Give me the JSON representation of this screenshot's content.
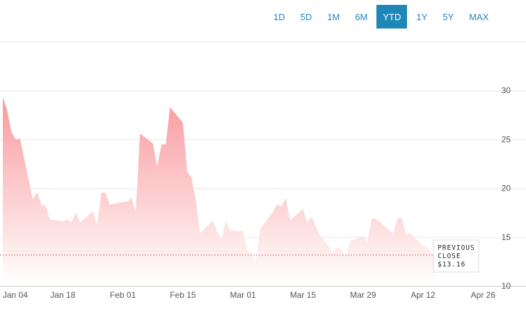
{
  "range_selector": {
    "options": [
      "1D",
      "5D",
      "1M",
      "6M",
      "YTD",
      "1Y",
      "5Y",
      "MAX"
    ],
    "selected": "YTD"
  },
  "colors": {
    "accent": "#1f86b8",
    "area_top": "#f99a9e",
    "area_bottom": "#ffffff",
    "previous_close_line": "#d9777b"
  },
  "chart_data": {
    "type": "area",
    "title": "",
    "xlabel": "",
    "ylabel": "",
    "ylim": [
      10,
      35
    ],
    "xlim": [
      "2021-01-04",
      "2021-04-30"
    ],
    "grid": true,
    "y_ticks": [
      10,
      15,
      20,
      25,
      30
    ],
    "x_tick_labels": [
      {
        "date": "2021-01-04",
        "label": "Jan 04"
      },
      {
        "date": "2021-01-18",
        "label": "Jan 18"
      },
      {
        "date": "2021-02-01",
        "label": "Feb 01"
      },
      {
        "date": "2021-02-15",
        "label": "Feb 15"
      },
      {
        "date": "2021-03-01",
        "label": "Mar 01"
      },
      {
        "date": "2021-03-15",
        "label": "Mar 15"
      },
      {
        "date": "2021-03-29",
        "label": "Mar 29"
      },
      {
        "date": "2021-04-12",
        "label": "Apr 12"
      },
      {
        "date": "2021-04-26",
        "label": "Apr 26"
      }
    ],
    "previous_close": {
      "label_line1": "PREVIOUS",
      "label_line2": "CLOSE",
      "value_text": "$13.16",
      "value": 13.16
    },
    "series": [
      {
        "points": [
          [
            "2021-01-04",
            29.3
          ],
          [
            "2021-01-05",
            28.0
          ],
          [
            "2021-01-06",
            25.8
          ],
          [
            "2021-01-07",
            25.0
          ],
          [
            "2021-01-08",
            25.1
          ],
          [
            "2021-01-11",
            18.9
          ],
          [
            "2021-01-12",
            19.6
          ],
          [
            "2021-01-13",
            18.3
          ],
          [
            "2021-01-14",
            18.2
          ],
          [
            "2021-01-15",
            16.8
          ],
          [
            "2021-01-18",
            16.6
          ],
          [
            "2021-01-19",
            16.8
          ],
          [
            "2021-01-20",
            16.5
          ],
          [
            "2021-01-21",
            17.5
          ],
          [
            "2021-01-22",
            16.5
          ],
          [
            "2021-01-25",
            17.6
          ],
          [
            "2021-01-26",
            16.3
          ],
          [
            "2021-01-27",
            19.6
          ],
          [
            "2021-01-28",
            19.5
          ],
          [
            "2021-01-29",
            18.3
          ],
          [
            "2021-02-01",
            18.6
          ],
          [
            "2021-02-02",
            18.6
          ],
          [
            "2021-02-03",
            19.0
          ],
          [
            "2021-02-04",
            17.6
          ],
          [
            "2021-02-05",
            25.6
          ],
          [
            "2021-02-08",
            24.6
          ],
          [
            "2021-02-09",
            22.2
          ],
          [
            "2021-02-10",
            24.5
          ],
          [
            "2021-02-11",
            24.5
          ],
          [
            "2021-02-12",
            28.3
          ],
          [
            "2021-02-15",
            26.7
          ],
          [
            "2021-02-16",
            21.7
          ],
          [
            "2021-02-17",
            21.1
          ],
          [
            "2021-02-18",
            18.8
          ],
          [
            "2021-02-19",
            15.4
          ],
          [
            "2021-02-22",
            16.7
          ],
          [
            "2021-02-23",
            15.5
          ],
          [
            "2021-02-24",
            14.8
          ],
          [
            "2021-02-25",
            16.6
          ],
          [
            "2021-02-26",
            15.7
          ],
          [
            "2021-03-01",
            15.6
          ],
          [
            "2021-03-02",
            13.6
          ],
          [
            "2021-03-03",
            13.4
          ],
          [
            "2021-03-04",
            12.2
          ],
          [
            "2021-03-05",
            15.8
          ],
          [
            "2021-03-08",
            17.6
          ],
          [
            "2021-03-09",
            18.4
          ],
          [
            "2021-03-10",
            18.1
          ],
          [
            "2021-03-11",
            19.0
          ],
          [
            "2021-03-12",
            16.7
          ],
          [
            "2021-03-15",
            17.9
          ],
          [
            "2021-03-16",
            16.5
          ],
          [
            "2021-03-17",
            17.1
          ],
          [
            "2021-03-18",
            16.1
          ],
          [
            "2021-03-19",
            15.2
          ],
          [
            "2021-03-22",
            13.5
          ],
          [
            "2021-03-23",
            14.0
          ],
          [
            "2021-03-24",
            13.7
          ],
          [
            "2021-03-25",
            13.0
          ],
          [
            "2021-03-26",
            14.6
          ],
          [
            "2021-03-29",
            15.1
          ],
          [
            "2021-03-30",
            14.5
          ],
          [
            "2021-03-31",
            16.9
          ],
          [
            "2021-04-01",
            16.9
          ],
          [
            "2021-04-05",
            15.4
          ],
          [
            "2021-04-06",
            16.9
          ],
          [
            "2021-04-07",
            17.0
          ],
          [
            "2021-04-08",
            15.3
          ],
          [
            "2021-04-09",
            15.4
          ],
          [
            "2021-04-12",
            14.1
          ],
          [
            "2021-04-13",
            13.9
          ],
          [
            "2021-04-14",
            13.4
          ],
          [
            "2021-04-15",
            13.2
          ]
        ]
      }
    ]
  }
}
